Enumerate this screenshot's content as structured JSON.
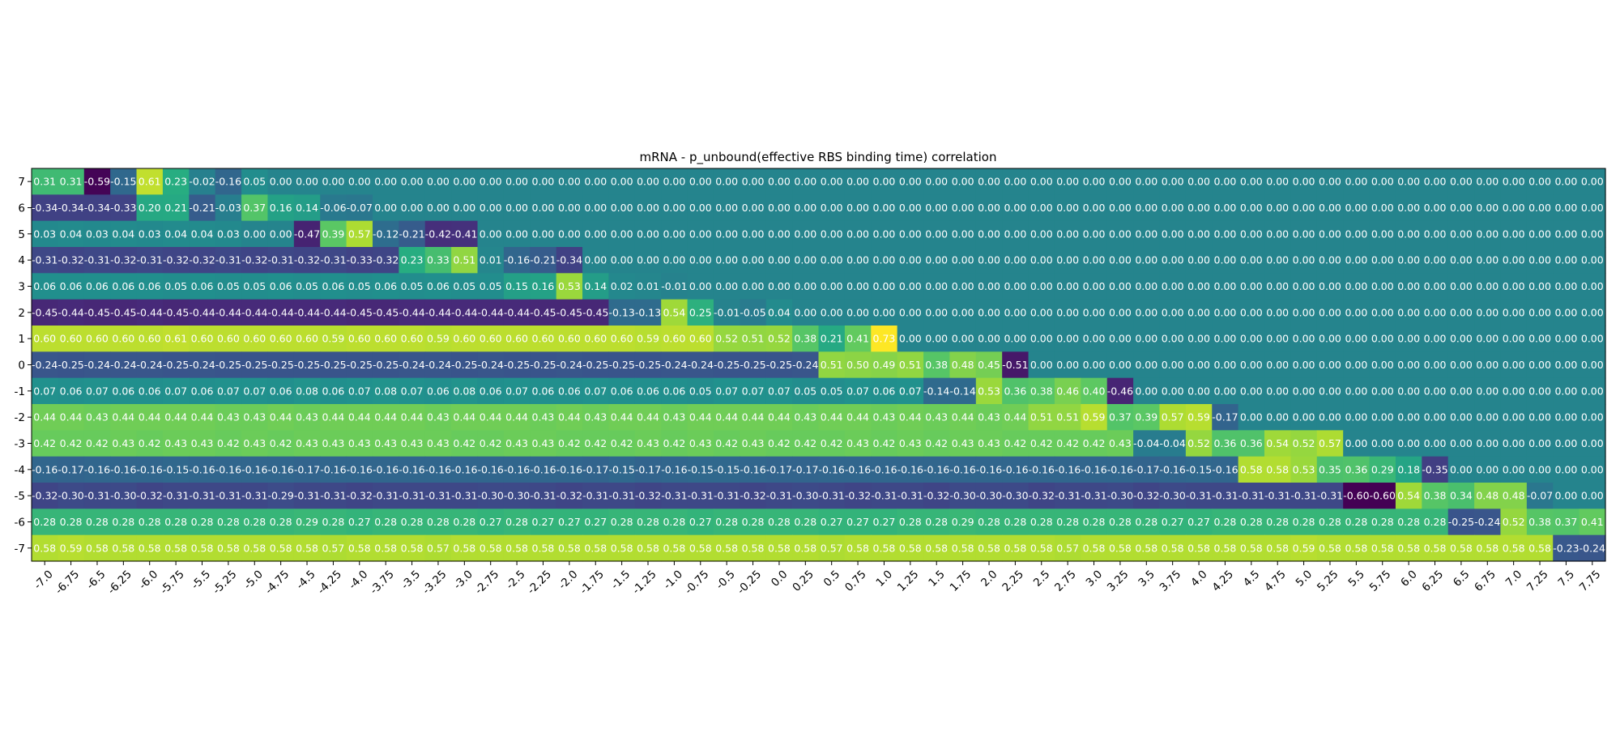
{
  "chart_data": {
    "type": "heatmap",
    "title": "mRNA - p_unbound(effective RBS binding time) correlation",
    "xlabel": "",
    "ylabel": "",
    "x_tick_labels": [
      "-7.0",
      "-6.75",
      "-6.5",
      "-6.25",
      "-6.0",
      "-5.75",
      "-5.5",
      "-5.25",
      "-5.0",
      "-4.75",
      "-4.5",
      "-4.25",
      "-4.0",
      "-3.75",
      "-3.5",
      "-3.25",
      "-3.0",
      "-2.75",
      "-2.5",
      "-2.25",
      "-2.0",
      "-1.75",
      "-1.5",
      "-1.25",
      "-1.0",
      "-0.75",
      "-0.5",
      "-0.25",
      "0.0",
      "0.25",
      "0.5",
      "0.75",
      "1.0",
      "1.25",
      "1.5",
      "1.75",
      "2.0",
      "2.25",
      "2.5",
      "2.75",
      "3.0",
      "3.25",
      "3.5",
      "3.75",
      "4.0",
      "4.25",
      "4.5",
      "4.75",
      "5.0",
      "5.25",
      "5.5",
      "5.75",
      "6.0",
      "6.25",
      "6.5",
      "6.75",
      "7.0",
      "7.25",
      "7.5",
      "7.75"
    ],
    "y_tick_labels": [
      "7",
      "6",
      "5",
      "4",
      "3",
      "2",
      "1",
      "0",
      "-1",
      "-2",
      "-3",
      "-4",
      "-5",
      "-6",
      "-7"
    ],
    "color_range": [
      -0.6,
      0.73
    ],
    "colormap": "viridis",
    "value_format": "2 decimals",
    "rows": [
      "0.31 0.31 -0.59 -0.15 0.61 0.23 -0.02 -0.16 0.05 0.00 0.00 0.00 0.00 0.00 0.00 0.00 0.00 0.00 0.00 0.00 0.00 0.00 0.00 0.00 0.00 0.00 0.00 0.00 0.00 0.00 0.00 0.00 0.00 0.00 0.00 0.00 0.00 0.00 0.00 0.00 0.00 0.00 0.00 0.00 0.00 0.00 0.00 0.00 0.00 0.00 0.00 0.00 0.00 0.00 0.00 0.00 0.00 0.00 0.00 0.00",
      "-0.34 -0.34 -0.34 -0.33 0.20 0.21 -0.21 -0.03 0.37 0.16 0.14 -0.06 -0.07 0.00 0.00 0.00 0.00 0.00 0.00 0.00 0.00 0.00 0.00 0.00 0.00 0.00 0.00 0.00 0.00 0.00 0.00 0.00 0.00 0.00 0.00 0.00 0.00 0.00 0.00 0.00 0.00 0.00 0.00 0.00 0.00 0.00 0.00 0.00 0.00 0.00 0.00 0.00 0.00 0.00 0.00 0.00 0.00 0.00 0.00 0.00",
      "0.03 0.04 0.03 0.04 0.03 0.04 0.04 0.03 0.00 0.00 -0.47 0.39 0.57 -0.12 -0.21 -0.42 -0.41 0.00 0.00 0.00 0.00 0.00 0.00 0.00 0.00 0.00 0.00 0.00 0.00 0.00 0.00 0.00 0.00 0.00 0.00 0.00 0.00 0.00 0.00 0.00 0.00 0.00 0.00 0.00 0.00 0.00 0.00 0.00 0.00 0.00 0.00 0.00 0.00 0.00 0.00 0.00 0.00 0.00 0.00 0.00",
      "-0.31 -0.32 -0.31 -0.32 -0.31 -0.32 -0.32 -0.31 -0.32 -0.31 -0.32 -0.31 -0.33 -0.32 0.23 0.33 0.51 0.01 -0.16 -0.21 -0.34 0.00 0.00 0.00 0.00 0.00 0.00 0.00 0.00 0.00 0.00 0.00 0.00 0.00 0.00 0.00 0.00 0.00 0.00 0.00 0.00 0.00 0.00 0.00 0.00 0.00 0.00 0.00 0.00 0.00 0.00 0.00 0.00 0.00 0.00 0.00 0.00 0.00 0.00 0.00",
      "0.06 0.06 0.06 0.06 0.06 0.05 0.06 0.05 0.05 0.06 0.05 0.06 0.05 0.06 0.05 0.06 0.05 0.05 0.15 0.16 0.53 0.14 0.02 0.01 -0.01 0.00 0.00 0.00 0.00 0.00 0.00 0.00 0.00 0.00 0.00 0.00 0.00 0.00 0.00 0.00 0.00 0.00 0.00 0.00 0.00 0.00 0.00 0.00 0.00 0.00 0.00 0.00 0.00 0.00 0.00 0.00 0.00 0.00 0.00 0.00",
      "-0.45 -0.44 -0.45 -0.45 -0.44 -0.45 -0.44 -0.44 -0.44 -0.44 -0.44 -0.44 -0.45 -0.45 -0.44 -0.44 -0.44 -0.44 -0.44 -0.45 -0.45 -0.45 -0.13 -0.13 0.54 0.25 -0.01 -0.05 0.04 0.00 0.00 0.00 0.00 0.00 0.00 0.00 0.00 0.00 0.00 0.00 0.00 0.00 0.00 0.00 0.00 0.00 0.00 0.00 0.00 0.00 0.00 0.00 0.00 0.00 0.00 0.00 0.00 0.00 0.00 0.00",
      "0.60 0.60 0.60 0.60 0.60 0.61 0.60 0.60 0.60 0.60 0.60 0.59 0.60 0.60 0.60 0.59 0.60 0.60 0.60 0.60 0.60 0.60 0.60 0.59 0.60 0.60 0.52 0.51 0.52 0.38 0.21 0.41 0.73 0.00 0.00 0.00 0.00 0.00 0.00 0.00 0.00 0.00 0.00 0.00 0.00 0.00 0.00 0.00 0.00 0.00 0.00 0.00 0.00 0.00 0.00 0.00 0.00 0.00 0.00 0.00",
      "-0.24 -0.25 -0.24 -0.24 -0.24 -0.25 -0.24 -0.25 -0.25 -0.25 -0.25 -0.25 -0.25 -0.25 -0.24 -0.24 -0.25 -0.24 -0.25 -0.25 -0.24 -0.25 -0.25 -0.25 -0.24 -0.24 -0.25 -0.25 -0.25 -0.24 0.51 0.50 0.49 0.51 0.38 0.48 0.45 -0.51 0.00 0.00 0.00 0.00 0.00 0.00 0.00 0.00 0.00 0.00 0.00 0.00 0.00 0.00 0.00 0.00 0.00 0.00 0.00 0.00 0.00 0.00",
      "0.07 0.06 0.07 0.06 0.06 0.07 0.06 0.07 0.07 0.06 0.08 0.06 0.07 0.08 0.07 0.06 0.08 0.06 0.07 0.06 0.06 0.07 0.06 0.06 0.06 0.05 0.07 0.07 0.07 0.05 0.05 0.07 0.06 0.07 -0.14 -0.14 0.53 0.36 0.38 0.46 0.40 -0.46 0.00 0.00 0.00 0.00 0.00 0.00 0.00 0.00 0.00 0.00 0.00 0.00 0.00 0.00 0.00 0.00 0.00 0.00",
      "0.44 0.44 0.43 0.44 0.44 0.44 0.44 0.43 0.43 0.44 0.43 0.44 0.44 0.44 0.44 0.43 0.44 0.44 0.44 0.43 0.44 0.43 0.44 0.44 0.43 0.44 0.44 0.44 0.44 0.43 0.44 0.44 0.43 0.44 0.43 0.44 0.43 0.44 0.51 0.51 0.59 0.37 0.39 0.57 0.59 -0.17 0.00 0.00 0.00 0.00 0.00 0.00 0.00 0.00 0.00 0.00 0.00 0.00 0.00 0.00",
      "0.42 0.42 0.42 0.43 0.42 0.43 0.43 0.42 0.43 0.42 0.43 0.43 0.43 0.43 0.43 0.43 0.42 0.42 0.43 0.43 0.42 0.42 0.42 0.43 0.42 0.43 0.42 0.43 0.42 0.42 0.42 0.43 0.42 0.43 0.42 0.43 0.43 0.42 0.42 0.42 0.42 0.43 -0.04 -0.04 0.52 0.36 0.36 0.54 0.52 0.57 0.00 0.00 0.00 0.00 0.00 0.00 0.00 0.00 0.00 0.00",
      "-0.16 -0.17 -0.16 -0.16 -0.16 -0.15 -0.16 -0.16 -0.16 -0.16 -0.17 -0.16 -0.16 -0.16 -0.16 -0.16 -0.16 -0.16 -0.16 -0.16 -0.16 -0.17 -0.15 -0.17 -0.16 -0.15 -0.15 -0.16 -0.17 -0.17 -0.16 -0.16 -0.16 -0.16 -0.16 -0.16 -0.16 -0.16 -0.16 -0.16 -0.16 -0.16 -0.17 -0.16 -0.15 -0.16 0.58 0.58 0.53 0.35 0.36 0.29 0.18 -0.35 0.00 0.00 0.00 0.00 0.00 0.00",
      "-0.32 -0.30 -0.31 -0.30 -0.32 -0.31 -0.31 -0.31 -0.31 -0.29 -0.31 -0.31 -0.32 -0.31 -0.31 -0.31 -0.31 -0.30 -0.30 -0.31 -0.32 -0.31 -0.31 -0.32 -0.31 -0.31 -0.31 -0.32 -0.31 -0.30 -0.31 -0.32 -0.31 -0.31 -0.32 -0.30 -0.30 -0.30 -0.32 -0.31 -0.31 -0.30 -0.32 -0.30 -0.31 -0.31 -0.31 -0.31 -0.31 -0.31 -0.60 -0.60 0.54 0.38 0.34 0.48 0.48 -0.07 0.00 0.00",
      "0.28 0.28 0.28 0.28 0.28 0.28 0.28 0.28 0.28 0.28 0.29 0.28 0.27 0.28 0.28 0.28 0.28 0.27 0.28 0.27 0.27 0.27 0.28 0.28 0.28 0.27 0.28 0.28 0.28 0.28 0.27 0.27 0.27 0.28 0.28 0.29 0.28 0.28 0.28 0.28 0.28 0.28 0.28 0.27 0.27 0.28 0.28 0.28 0.28 0.28 0.28 0.28 0.28 0.28 -0.25 -0.24 0.52 0.38 0.37 0.41",
      "0.58 0.59 0.58 0.58 0.58 0.58 0.58 0.58 0.58 0.58 0.58 0.57 0.58 0.58 0.58 0.57 0.58 0.58 0.58 0.58 0.58 0.58 0.58 0.58 0.58 0.58 0.58 0.58 0.58 0.58 0.57 0.58 0.58 0.58 0.58 0.58 0.58 0.58 0.58 0.57 0.58 0.58 0.58 0.58 0.58 0.58 0.58 0.58 0.59 0.58 0.58 0.58 0.58 0.58 0.58 0.58 0.58 0.58 -0.23 -0.24"
    ]
  }
}
